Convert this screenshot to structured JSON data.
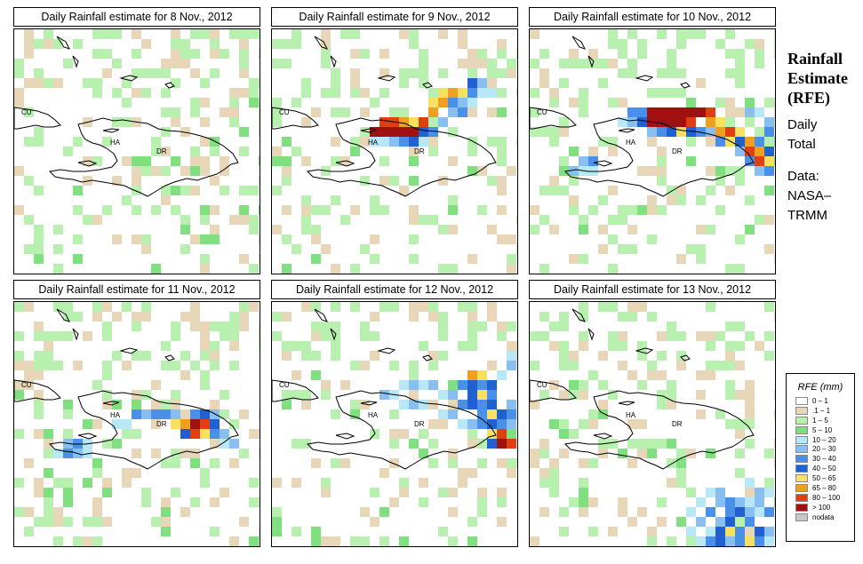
{
  "panels": [
    {
      "title": "Daily Rainfall estimate for  8 Nov., 2012"
    },
    {
      "title": "Daily Rainfall estimate for  9 Nov., 2012"
    },
    {
      "title": "Daily Rainfall estimate for  10 Nov., 2012"
    },
    {
      "title": "Daily Rainfall estimate for  11 Nov., 2012"
    },
    {
      "title": "Daily Rainfall estimate for  12 Nov., 2012"
    },
    {
      "title": "Daily Rainfall estimate for  13 Nov., 2012"
    }
  ],
  "map_labels": {
    "cuba": "CU",
    "haiti": "HA",
    "dominican_republic": "DR"
  },
  "side": {
    "title_line1": "Rainfall",
    "title_line2": "Estimate",
    "title_line3": "(RFE)",
    "daily": "Daily",
    "total": "Total",
    "data": "Data:",
    "source1": "NASA–",
    "source2": "TRMM"
  },
  "legend": {
    "title": "RFE (mm)",
    "items": [
      {
        "label": "0 – 1",
        "color": "#ffffff"
      },
      {
        "label": ".1 – 1",
        "color": "#e8d6b8"
      },
      {
        "label": "1 – 5",
        "color": "#b8f0b0"
      },
      {
        "label": "5 – 10",
        "color": "#80e080"
      },
      {
        "label": "10 – 20",
        "color": "#b8e8f8"
      },
      {
        "label": "20 – 30",
        "color": "#88bff0"
      },
      {
        "label": "30 – 40",
        "color": "#4a90e8"
      },
      {
        "label": "40 – 50",
        "color": "#2060d0"
      },
      {
        "label": "50 – 65",
        "color": "#f8e060"
      },
      {
        "label": "65 – 80",
        "color": "#f0a020"
      },
      {
        "label": "80 – 100",
        "color": "#e04010"
      },
      {
        "label": "> 100",
        "color": "#a01010"
      },
      {
        "label": "nodata",
        "color": "#c8c8c8"
      }
    ]
  }
}
